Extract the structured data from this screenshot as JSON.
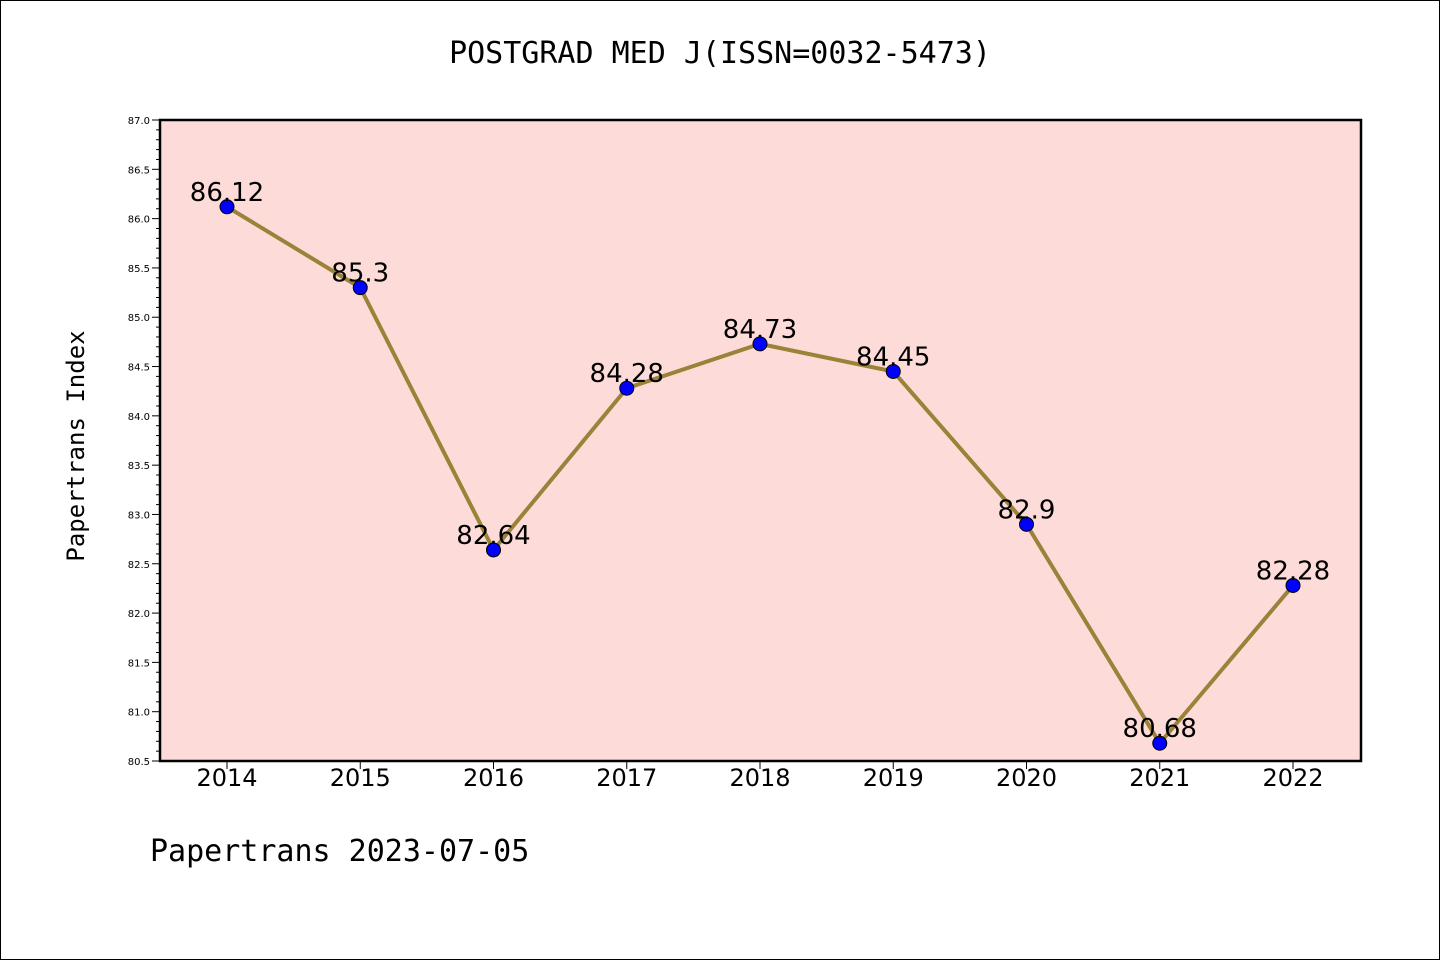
{
  "chart_data": {
    "type": "line",
    "title": "POSTGRAD MED J(ISSN=0032-5473)",
    "xlabel": "",
    "ylabel": "Papertrans Index",
    "categories": [
      "2014",
      "2015",
      "2016",
      "2017",
      "2018",
      "2019",
      "2020",
      "2021",
      "2022"
    ],
    "values": [
      86.12,
      85.3,
      82.64,
      84.28,
      84.73,
      84.45,
      82.9,
      80.68,
      82.28
    ],
    "data_labels": [
      "86.12",
      "85.3",
      "82.64",
      "84.28",
      "84.73",
      "84.45",
      "82.9",
      "80.68",
      "82.28"
    ],
    "ylim": [
      80.5,
      87.0
    ],
    "yticks": [
      "80.5",
      "81.0",
      "81.5",
      "82.0",
      "82.5",
      "83.0",
      "83.5",
      "84.0",
      "84.5",
      "85.0",
      "85.5",
      "86.0",
      "86.5",
      "87.0"
    ],
    "grid": false,
    "legend": "none",
    "colors": {
      "plot_background": "#fddbd8",
      "line": "#9a8238",
      "marker": "#0000ff"
    }
  },
  "footer": "Papertrans 2023-07-05"
}
